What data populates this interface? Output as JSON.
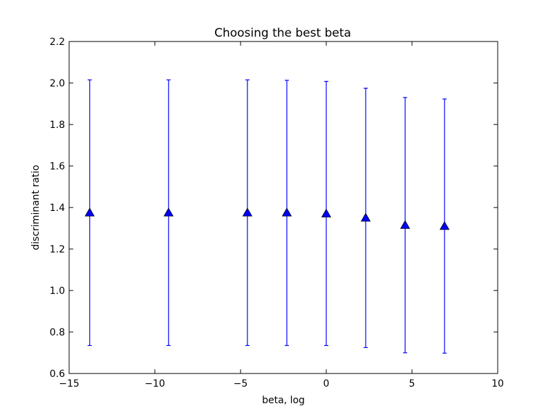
{
  "chart_data": {
    "type": "scatter",
    "title": "Choosing the best beta",
    "xlabel": "beta, log",
    "ylabel": "discriminant ratio",
    "xlim": [
      -15,
      10
    ],
    "ylim": [
      0.6,
      2.2
    ],
    "xticks": [
      -15,
      -10,
      -5,
      0,
      5,
      10
    ],
    "xtick_labels": [
      "−15",
      "−10",
      "−5",
      "0",
      "5",
      "10"
    ],
    "yticks": [
      0.6,
      0.8,
      1.0,
      1.2,
      1.4,
      1.6,
      1.8,
      2.0,
      2.2
    ],
    "ytick_labels": [
      "0.6",
      "0.8",
      "1.0",
      "1.2",
      "1.4",
      "1.6",
      "1.8",
      "2.0",
      "2.2"
    ],
    "grid": false,
    "marker": "triangle",
    "color": "#0000ff",
    "points": [
      {
        "x": -13.8,
        "y": 1.375,
        "ylow": 0.735,
        "yhigh": 2.015
      },
      {
        "x": -9.2,
        "y": 1.375,
        "ylow": 0.735,
        "yhigh": 2.015
      },
      {
        "x": -4.6,
        "y": 1.375,
        "ylow": 0.735,
        "yhigh": 2.015
      },
      {
        "x": -2.3,
        "y": 1.375,
        "ylow": 0.735,
        "yhigh": 2.013
      },
      {
        "x": 0.0,
        "y": 1.37,
        "ylow": 0.735,
        "yhigh": 2.008
      },
      {
        "x": 2.3,
        "y": 1.35,
        "ylow": 0.725,
        "yhigh": 1.975
      },
      {
        "x": 4.6,
        "y": 1.315,
        "ylow": 0.7,
        "yhigh": 1.93
      },
      {
        "x": 6.9,
        "y": 1.31,
        "ylow": 0.698,
        "yhigh": 1.923
      }
    ]
  }
}
